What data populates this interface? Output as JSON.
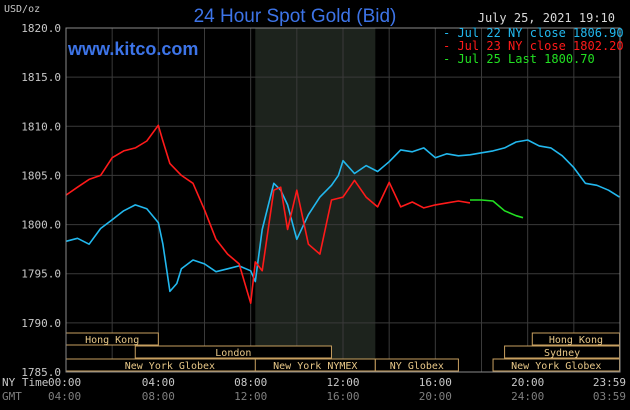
{
  "chart_data": {
    "type": "line",
    "title": "24 Hour Spot Gold (Bid)",
    "site": "www.kitco.com",
    "date": "July 25, 2021 19:10",
    "ylabel": "USD/oz",
    "ylim": [
      1785,
      1820
    ],
    "yticks": [
      "1820.0",
      "1815.0",
      "1810.0",
      "1805.0",
      "1800.0",
      "1795.0",
      "1790.0",
      "1785.0"
    ],
    "xlim": [
      0,
      24
    ],
    "xaxis_rows": [
      {
        "label": "NY Time",
        "ticks": [
          "00:00",
          "04:00",
          "08:00",
          "12:00",
          "16:00",
          "20:00",
          "23:59"
        ]
      },
      {
        "label": "GMT",
        "ticks": [
          "04:00",
          "08:00",
          "12:00",
          "16:00",
          "20:00",
          "24:00",
          "03:59"
        ]
      }
    ],
    "xtick_hours": [
      0,
      4,
      8,
      12,
      16,
      20,
      23.98
    ],
    "shaded_hours": [
      8.2,
      13.4
    ],
    "grid": true,
    "legend_position": "top-right",
    "series": [
      {
        "name": "Jul 22 NY close 1806.90",
        "color": "#22b8ee",
        "x": [
          0,
          0.5,
          1,
          1.5,
          2,
          2.5,
          3,
          3.5,
          4,
          4.2,
          4.5,
          4.8,
          5,
          5.5,
          6,
          6.5,
          7,
          7.5,
          8,
          8.2,
          8.5,
          9,
          9.3,
          9.6,
          10,
          10.5,
          11,
          11.5,
          11.8,
          12,
          12.5,
          13,
          13.5,
          14,
          14.5,
          15,
          15.5,
          16,
          16.5,
          17,
          17.5,
          18,
          18.5,
          19,
          19.5,
          20,
          20.5,
          21,
          21.5,
          22,
          22.5,
          23,
          23.5,
          23.98
        ],
        "y": [
          1798.3,
          1798.6,
          1798.0,
          1799.6,
          1800.5,
          1801.4,
          1802.0,
          1801.6,
          1800.2,
          1798.0,
          1793.2,
          1794.0,
          1795.5,
          1796.4,
          1796.0,
          1795.2,
          1795.5,
          1795.8,
          1795.3,
          1794.2,
          1799.5,
          1804.2,
          1803.5,
          1802.0,
          1798.5,
          1801.0,
          1802.8,
          1804.0,
          1805.0,
          1806.5,
          1805.2,
          1806.0,
          1805.4,
          1806.4,
          1807.6,
          1807.4,
          1807.8,
          1806.8,
          1807.2,
          1807.0,
          1807.1,
          1807.3,
          1807.5,
          1807.8,
          1808.4,
          1808.6,
          1808.0,
          1807.8,
          1807.0,
          1805.8,
          1804.2,
          1804.0,
          1803.5,
          1802.8
        ]
      },
      {
        "name": "Jul 23 NY close 1802.20",
        "color": "#ff1a1a",
        "x": [
          0,
          0.5,
          1,
          1.5,
          2,
          2.5,
          3,
          3.5,
          4,
          4.2,
          4.5,
          5,
          5.5,
          6,
          6.5,
          7,
          7.5,
          8,
          8.2,
          8.5,
          9,
          9.3,
          9.6,
          10,
          10.5,
          11,
          11.5,
          12,
          12.5,
          13,
          13.5,
          14,
          14.5,
          15,
          15.5,
          16,
          16.5,
          17,
          17.5
        ],
        "y": [
          1803.0,
          1803.8,
          1804.6,
          1805.0,
          1806.8,
          1807.5,
          1807.8,
          1808.5,
          1810.1,
          1808.5,
          1806.2,
          1805.0,
          1804.2,
          1801.5,
          1798.5,
          1797.0,
          1796.0,
          1792.0,
          1796.2,
          1795.3,
          1803.5,
          1803.8,
          1799.5,
          1803.5,
          1798.0,
          1797.0,
          1802.5,
          1802.8,
          1804.5,
          1802.8,
          1801.8,
          1804.3,
          1801.8,
          1802.3,
          1801.7,
          1802.0,
          1802.2,
          1802.4,
          1802.2
        ]
      },
      {
        "name": "Jul 25 Last 1800.70",
        "color": "#22e022",
        "x": [
          17.5,
          18,
          18.5,
          19,
          19.5,
          19.8
        ],
        "y": [
          1802.5,
          1802.5,
          1802.4,
          1801.4,
          1800.9,
          1800.7
        ]
      }
    ],
    "market_bars": [
      {
        "label": "Hong Kong",
        "start": 0,
        "end": 4,
        "row": 0
      },
      {
        "label": "London",
        "start": 3,
        "end": 11.5,
        "row": 1
      },
      {
        "label": "New York Globex",
        "start": 0,
        "end": 9,
        "row": 2
      },
      {
        "label": "New York NYMEX",
        "start": 8.2,
        "end": 13.4,
        "row": 2
      },
      {
        "label": "NY Globex",
        "start": 13.4,
        "end": 17,
        "row": 2
      },
      {
        "label": "Hong Kong",
        "start": 20.2,
        "end": 23.98,
        "row": 0
      },
      {
        "label": "Sydney",
        "start": 19,
        "end": 23.98,
        "row": 1
      },
      {
        "label": "New York Globex",
        "start": 18.5,
        "end": 23.98,
        "row": 2
      }
    ]
  }
}
